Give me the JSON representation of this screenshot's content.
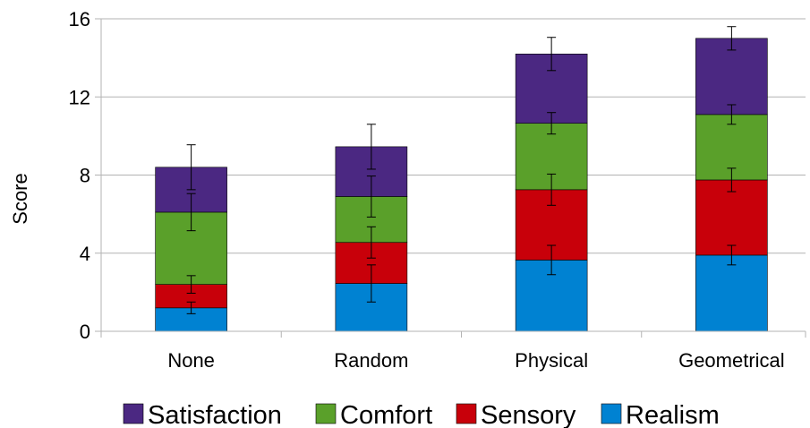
{
  "chart_data": {
    "type": "bar",
    "stacked": true,
    "title": "",
    "xlabel": "",
    "ylabel": "Score",
    "ylim": [
      0,
      16
    ],
    "yticks": [
      0,
      4,
      8,
      12,
      16
    ],
    "grid": "horizontal",
    "legend_position": "bottom",
    "categories": [
      "None",
      "Random",
      "Physical",
      "Geometrical"
    ],
    "series": [
      {
        "name": "Realism",
        "color": "#0082d2",
        "values": [
          1.2,
          2.45,
          3.65,
          3.9
        ],
        "errors": [
          0.3,
          0.95,
          0.75,
          0.5
        ]
      },
      {
        "name": "Sensory",
        "color": "#c8000a",
        "values": [
          1.2,
          2.1,
          3.6,
          3.85
        ],
        "errors": [
          0.45,
          0.8,
          0.8,
          0.6
        ]
      },
      {
        "name": "Comfort",
        "color": "#5aa02a",
        "values": [
          3.7,
          2.35,
          3.4,
          3.35
        ],
        "errors": [
          0.95,
          1.05,
          0.55,
          0.5
        ]
      },
      {
        "name": "Satisfaction",
        "color": "#4b2882",
        "values": [
          2.3,
          2.55,
          3.55,
          3.9
        ],
        "errors": [
          1.15,
          1.15,
          0.85,
          0.6
        ]
      }
    ],
    "legend_order": [
      "Satisfaction",
      "Comfort",
      "Sensory",
      "Realism"
    ]
  }
}
